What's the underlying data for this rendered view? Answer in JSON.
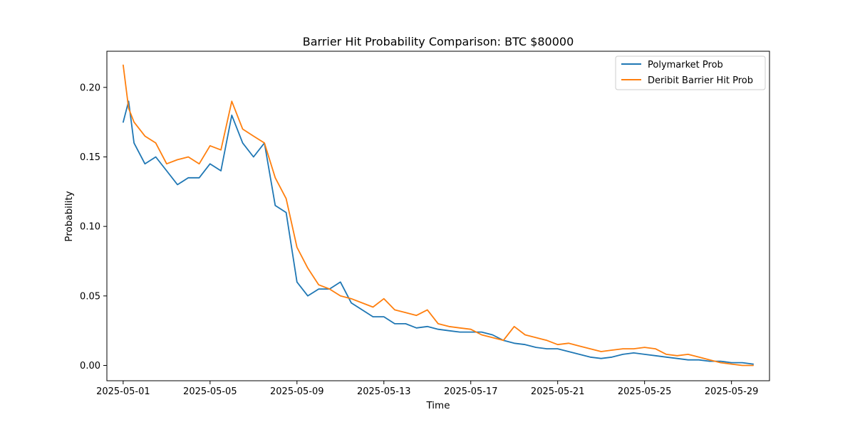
{
  "chart_data": {
    "type": "line",
    "title": "Barrier Hit Probability Comparison: BTC $80000",
    "xlabel": "Time",
    "ylabel": "Probability",
    "x_ticks": [
      "2025-05-01",
      "2025-05-05",
      "2025-05-09",
      "2025-05-13",
      "2025-05-17",
      "2025-05-21",
      "2025-05-25",
      "2025-05-29"
    ],
    "y_ticks": [
      "0.00",
      "0.05",
      "0.10",
      "0.15",
      "0.20"
    ],
    "xlim": [
      "2025-04-30T06:00",
      "2025-05-30T18:00"
    ],
    "ylim": [
      -0.011,
      0.226
    ],
    "grid": false,
    "legend_position": "top-right",
    "x": [
      "2025-05-01T00:00",
      "2025-05-01T06:00",
      "2025-05-01T12:00",
      "2025-05-02T00:00",
      "2025-05-02T12:00",
      "2025-05-03T00:00",
      "2025-05-03T12:00",
      "2025-05-04T00:00",
      "2025-05-04T12:00",
      "2025-05-05T00:00",
      "2025-05-05T12:00",
      "2025-05-06T00:00",
      "2025-05-06T12:00",
      "2025-05-07T00:00",
      "2025-05-07T12:00",
      "2025-05-08T00:00",
      "2025-05-08T12:00",
      "2025-05-09T00:00",
      "2025-05-09T12:00",
      "2025-05-10T00:00",
      "2025-05-10T12:00",
      "2025-05-11T00:00",
      "2025-05-11T12:00",
      "2025-05-12T00:00",
      "2025-05-12T12:00",
      "2025-05-13T00:00",
      "2025-05-13T12:00",
      "2025-05-14T00:00",
      "2025-05-14T12:00",
      "2025-05-15T00:00",
      "2025-05-15T12:00",
      "2025-05-16T00:00",
      "2025-05-16T12:00",
      "2025-05-17T00:00",
      "2025-05-17T12:00",
      "2025-05-18T00:00",
      "2025-05-18T12:00",
      "2025-05-19T00:00",
      "2025-05-19T12:00",
      "2025-05-20T00:00",
      "2025-05-20T12:00",
      "2025-05-21T00:00",
      "2025-05-21T12:00",
      "2025-05-22T00:00",
      "2025-05-22T12:00",
      "2025-05-23T00:00",
      "2025-05-23T12:00",
      "2025-05-24T00:00",
      "2025-05-24T12:00",
      "2025-05-25T00:00",
      "2025-05-25T12:00",
      "2025-05-26T00:00",
      "2025-05-26T12:00",
      "2025-05-27T00:00",
      "2025-05-27T12:00",
      "2025-05-28T00:00",
      "2025-05-28T12:00",
      "2025-05-29T00:00",
      "2025-05-29T12:00",
      "2025-05-30T00:00"
    ],
    "series": [
      {
        "name": "Polymarket Prob",
        "color": "#1f77b4",
        "values": [
          0.175,
          0.19,
          0.16,
          0.145,
          0.15,
          0.14,
          0.13,
          0.135,
          0.135,
          0.145,
          0.14,
          0.18,
          0.16,
          0.15,
          0.16,
          0.115,
          0.11,
          0.06,
          0.05,
          0.055,
          0.055,
          0.06,
          0.045,
          0.04,
          0.035,
          0.035,
          0.03,
          0.03,
          0.027,
          0.028,
          0.026,
          0.025,
          0.024,
          0.024,
          0.024,
          0.022,
          0.018,
          0.016,
          0.015,
          0.013,
          0.012,
          0.012,
          0.01,
          0.008,
          0.006,
          0.005,
          0.006,
          0.008,
          0.009,
          0.008,
          0.007,
          0.006,
          0.005,
          0.004,
          0.004,
          0.003,
          0.003,
          0.002,
          0.002,
          0.001
        ]
      },
      {
        "name": "Deribit Barrier Hit Prob",
        "color": "#ff7f0e",
        "values": [
          0.216,
          0.185,
          0.175,
          0.165,
          0.16,
          0.145,
          0.148,
          0.15,
          0.145,
          0.158,
          0.155,
          0.19,
          0.17,
          0.165,
          0.16,
          0.135,
          0.12,
          0.085,
          0.07,
          0.058,
          0.055,
          0.05,
          0.048,
          0.045,
          0.042,
          0.048,
          0.04,
          0.038,
          0.036,
          0.04,
          0.03,
          0.028,
          0.027,
          0.026,
          0.022,
          0.02,
          0.018,
          0.028,
          0.022,
          0.02,
          0.018,
          0.015,
          0.016,
          0.014,
          0.012,
          0.01,
          0.011,
          0.012,
          0.012,
          0.013,
          0.012,
          0.008,
          0.007,
          0.008,
          0.006,
          0.004,
          0.002,
          0.001,
          0.0,
          0.0
        ]
      }
    ]
  }
}
